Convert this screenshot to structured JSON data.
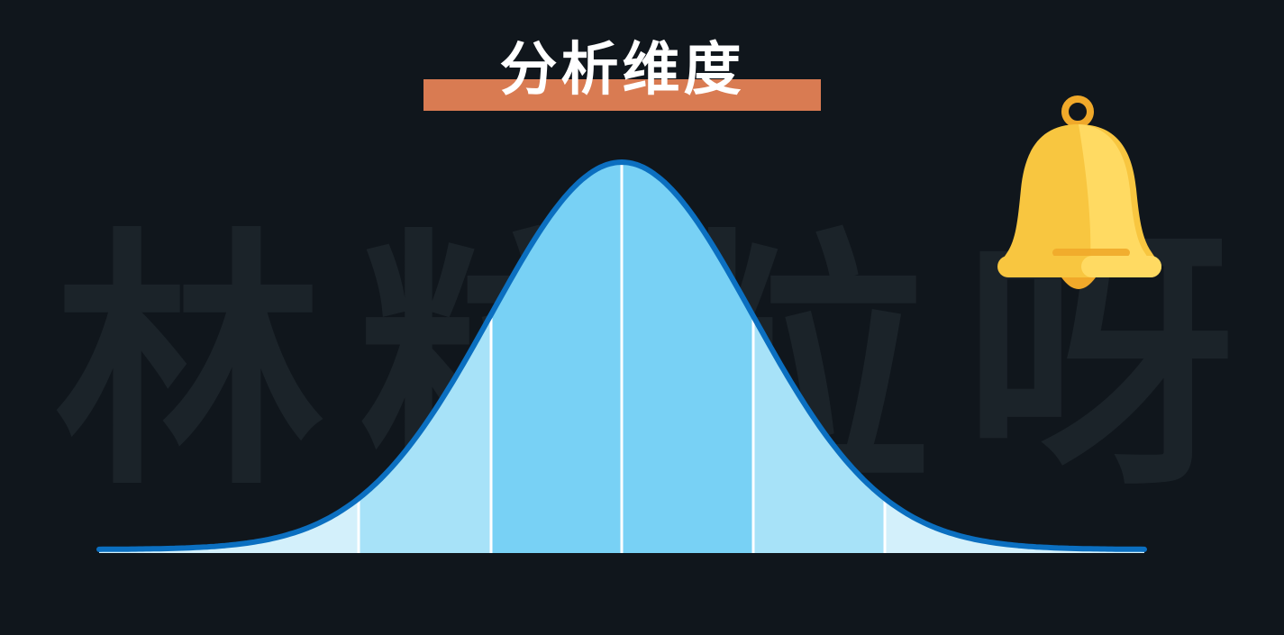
{
  "title": "分析维度",
  "watermark": {
    "chars": [
      "林",
      "粒",
      "粒",
      "呀"
    ]
  },
  "icons": {
    "bell": "bell-icon"
  },
  "colors": {
    "background": "#10161c",
    "title_bar": "#d97b52",
    "curve_outline": "#0b6fc0",
    "band_center": "#78d1f5",
    "band_mid": "#a7e2f8",
    "band_tail": "#d3f0fb",
    "bell_body": "#f8c640",
    "bell_highlight": "#ffda62"
  }
}
